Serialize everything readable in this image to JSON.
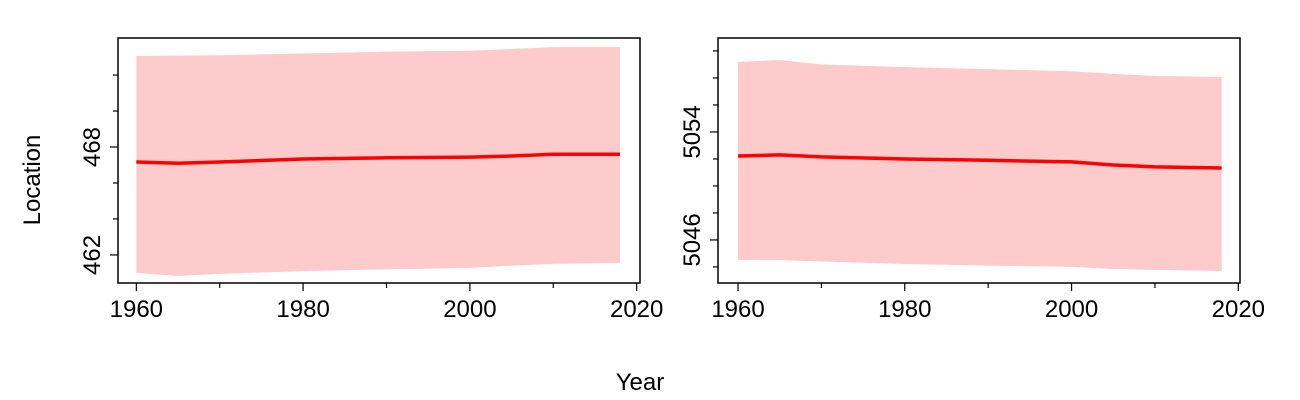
{
  "x_label": "Year",
  "y_label": "Location",
  "chart_data": [
    {
      "type": "line",
      "x": [
        1960,
        1965,
        1970,
        1980,
        1990,
        2000,
        2005,
        2010,
        2018
      ],
      "values": [
        467.17,
        467.1,
        467.17,
        467.33,
        467.4,
        467.44,
        467.5,
        467.6,
        467.6
      ],
      "upper": [
        473.06,
        473.08,
        473.1,
        473.2,
        473.3,
        473.35,
        473.45,
        473.55,
        473.56
      ],
      "lower": [
        461.0,
        460.83,
        460.95,
        461.1,
        461.2,
        461.28,
        461.4,
        461.5,
        461.56
      ],
      "color": "#ff0000",
      "band_color": "#fdcbcb",
      "xlim": [
        1957.8,
        2020.4
      ],
      "ylim": [
        460.44,
        474.06
      ],
      "xticks": [
        1960,
        1980,
        2000,
        2020
      ],
      "xminor_ticks": [
        1970,
        1990,
        2010
      ],
      "yticks": [
        462,
        468
      ],
      "yminor_ticks": [
        464,
        466,
        470,
        472
      ]
    },
    {
      "type": "line",
      "x": [
        1960,
        1965,
        1970,
        1980,
        1990,
        2000,
        2005,
        2010,
        2018
      ],
      "values": [
        5052.22,
        5052.3,
        5052.15,
        5052.0,
        5051.9,
        5051.78,
        5051.55,
        5051.41,
        5051.33
      ],
      "upper": [
        5059.19,
        5059.33,
        5059.0,
        5058.8,
        5058.65,
        5058.5,
        5058.3,
        5058.15,
        5058.07
      ],
      "lower": [
        5044.52,
        5044.5,
        5044.4,
        5044.22,
        5044.1,
        5044.0,
        5043.85,
        5043.78,
        5043.7
      ],
      "color": "#ff0000",
      "band_color": "#fdcbcb",
      "xlim": [
        1957.6,
        2020.2
      ],
      "ylim": [
        5042.81,
        5060.96
      ],
      "xticks": [
        1960,
        1980,
        2000,
        2020
      ],
      "xminor_ticks": [
        1970,
        1990,
        2010
      ],
      "yticks": [
        5046,
        5054
      ],
      "yminor_ticks": [
        5044,
        5048,
        5050,
        5052,
        5056,
        5058,
        5060
      ]
    }
  ]
}
